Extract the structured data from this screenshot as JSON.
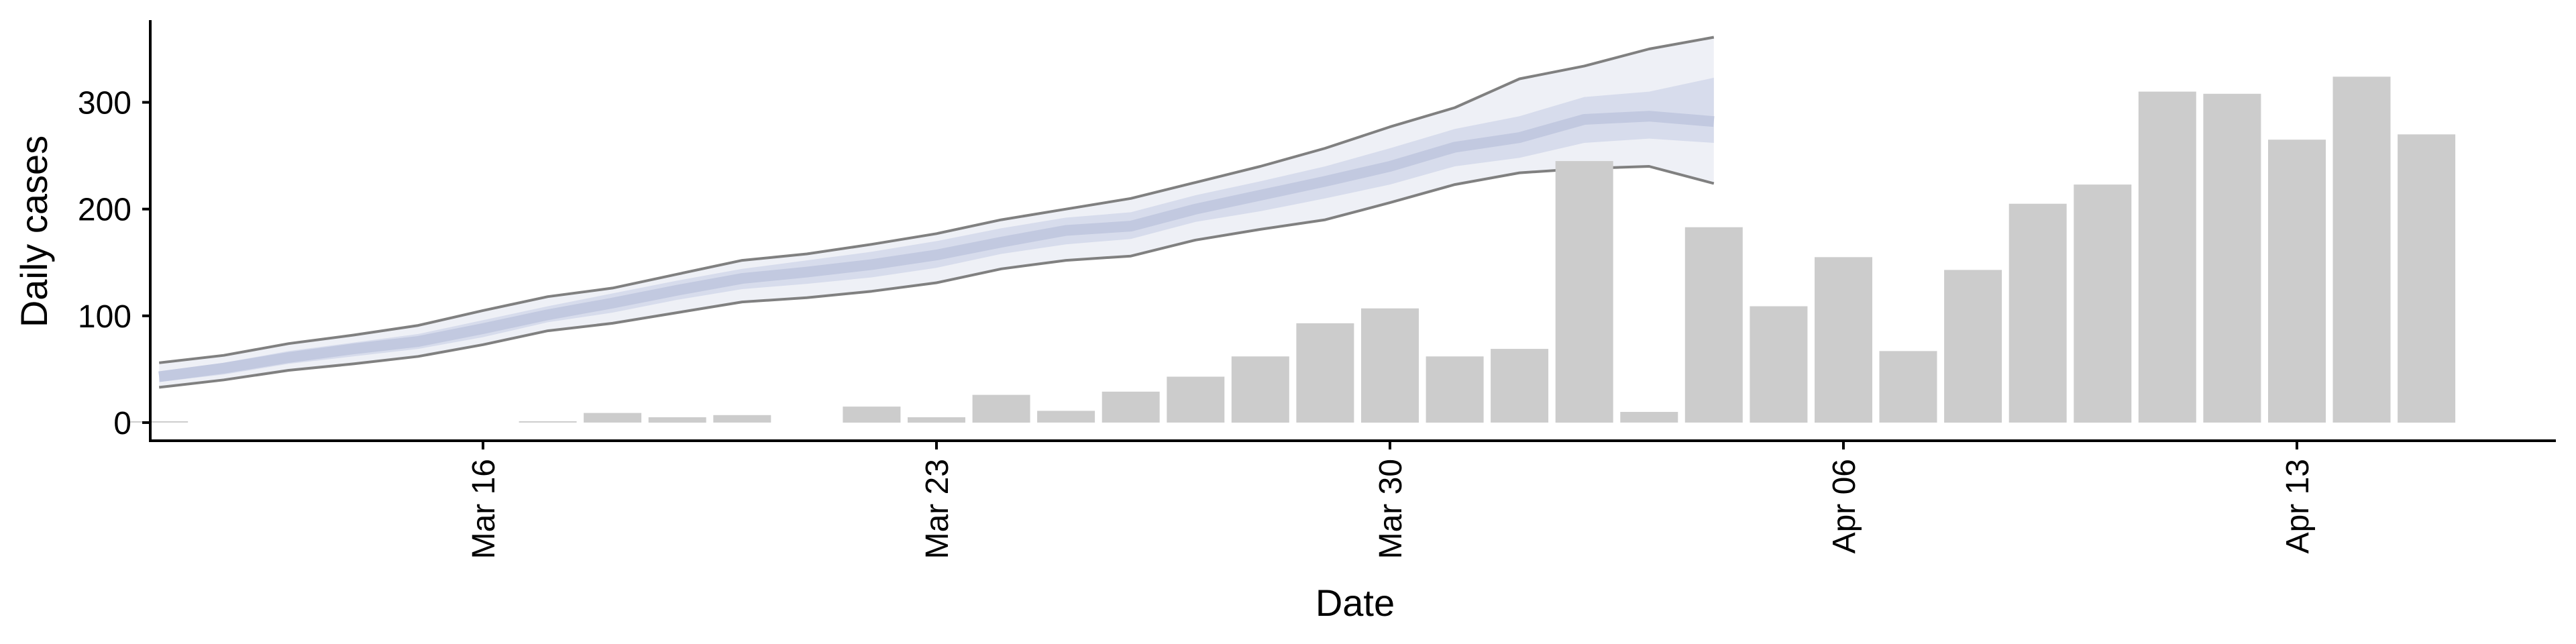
{
  "chart_data": {
    "type": "bar",
    "xlabel": "Date",
    "ylabel": "Daily cases",
    "ylim": [
      -17,
      377
    ],
    "x_ticks": [
      {
        "date": "2020-03-16",
        "label": "Mar 16"
      },
      {
        "date": "2020-03-23",
        "label": "Mar 23"
      },
      {
        "date": "2020-03-30",
        "label": "Mar 30"
      },
      {
        "date": "2020-04-06",
        "label": "Apr 06"
      },
      {
        "date": "2020-04-13",
        "label": "Apr 13"
      }
    ],
    "y_ticks": [
      0,
      100,
      200,
      300
    ],
    "bars": {
      "name": "Daily cases",
      "color": "#cccccc",
      "dates": [
        "2020-03-11",
        "2020-03-12",
        "2020-03-13",
        "2020-03-14",
        "2020-03-15",
        "2020-03-16",
        "2020-03-17",
        "2020-03-18",
        "2020-03-19",
        "2020-03-20",
        "2020-03-21",
        "2020-03-22",
        "2020-03-23",
        "2020-03-24",
        "2020-03-25",
        "2020-03-26",
        "2020-03-27",
        "2020-03-28",
        "2020-03-29",
        "2020-03-30",
        "2020-03-31",
        "2020-04-01",
        "2020-04-02",
        "2020-04-03",
        "2020-04-04",
        "2020-04-05",
        "2020-04-06",
        "2020-04-07",
        "2020-04-08",
        "2020-04-09",
        "2020-04-10",
        "2020-04-11",
        "2020-04-12",
        "2020-04-13",
        "2020-04-14",
        "2020-04-15",
        "2020-04-16"
      ],
      "values": [
        1,
        0,
        0,
        0,
        0,
        0,
        1,
        9,
        5,
        7,
        0,
        15,
        5,
        26,
        11,
        29,
        43,
        62,
        93,
        107,
        62,
        69,
        245,
        10,
        183,
        109,
        155,
        67,
        143,
        205,
        223,
        310,
        308,
        265,
        324,
        270,
        null
      ]
    },
    "forecast": {
      "color_band_90": "#eef0f6",
      "color_band_50": "#d7dcec",
      "color_median": "#c2c9e0",
      "color_outline": "#808080",
      "dates": [
        "2020-03-11",
        "2020-03-12",
        "2020-03-13",
        "2020-03-14",
        "2020-03-15",
        "2020-03-16",
        "2020-03-17",
        "2020-03-18",
        "2020-03-19",
        "2020-03-20",
        "2020-03-21",
        "2020-03-22",
        "2020-03-23",
        "2020-03-24",
        "2020-03-25",
        "2020-03-26",
        "2020-03-27",
        "2020-03-28",
        "2020-03-29",
        "2020-03-30",
        "2020-03-31",
        "2020-04-01",
        "2020-04-02",
        "2020-04-03",
        "2020-04-04",
        "2020-04-05",
        "2020-04-06"
      ],
      "lower_90": [
        33,
        40,
        49,
        55,
        62,
        73,
        86,
        93,
        103,
        113,
        117,
        123,
        131,
        144,
        152,
        156,
        171,
        181,
        190,
        206,
        223,
        234,
        238,
        240,
        224,
        null,
        null
      ],
      "lower_50": [
        38,
        45,
        55,
        62,
        69,
        80,
        94,
        103,
        115,
        125,
        130,
        136,
        145,
        158,
        167,
        172,
        188,
        198,
        210,
        223,
        240,
        248,
        262,
        266,
        262,
        null,
        null
      ],
      "median": [
        43,
        51,
        61,
        69,
        76,
        88,
        101,
        112,
        124,
        135,
        141,
        148,
        157,
        169,
        180,
        184,
        200,
        213,
        226,
        240,
        258,
        267,
        284,
        287,
        282,
        null,
        null
      ],
      "upper_50": [
        48,
        56,
        67,
        75,
        83,
        96,
        109,
        121,
        133,
        144,
        152,
        160,
        170,
        182,
        192,
        197,
        213,
        226,
        240,
        257,
        275,
        287,
        305,
        310,
        323,
        null,
        null
      ],
      "upper_90": [
        56,
        63,
        74,
        82,
        91,
        105,
        118,
        126,
        139,
        152,
        158,
        167,
        177,
        190,
        200,
        210,
        225,
        240,
        257,
        277,
        295,
        322,
        334,
        350,
        361,
        null,
        null
      ]
    }
  }
}
